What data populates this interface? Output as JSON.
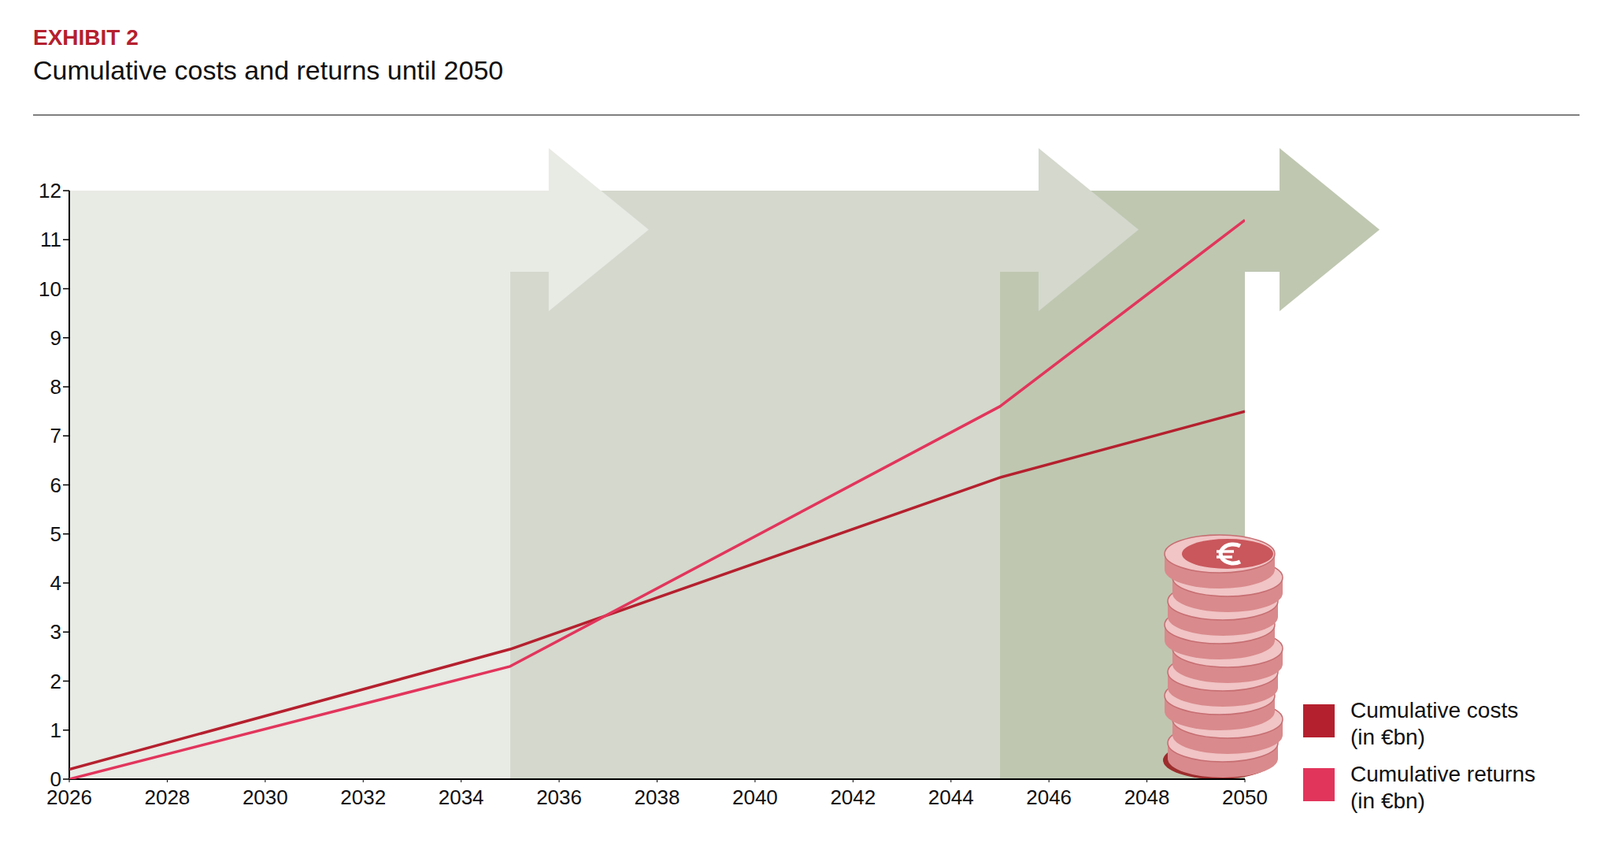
{
  "chart_data": {
    "type": "line",
    "label": "EXHIBIT 2",
    "title": "Cumulative costs and returns until 2050",
    "x": [
      2026,
      2035,
      2045,
      2050
    ],
    "series": [
      {
        "name": "Cumulative costs (in €bn)",
        "color": "#b5202e",
        "values": [
          0.2,
          2.65,
          6.15,
          7.5
        ]
      },
      {
        "name": "Cumulative returns (in €bn)",
        "color": "#e2355c",
        "values": [
          0,
          2.3,
          7.6,
          11.4
        ]
      }
    ],
    "xlim": [
      2026,
      2050
    ],
    "xticks": [
      2026,
      2028,
      2030,
      2032,
      2034,
      2036,
      2038,
      2040,
      2042,
      2044,
      2046,
      2048,
      2050
    ],
    "ylim": [
      0,
      12
    ],
    "yticks": [
      0,
      1,
      2,
      3,
      4,
      5,
      6,
      7,
      8,
      9,
      10,
      11,
      12
    ],
    "legend": "right",
    "grid": false
  }
}
